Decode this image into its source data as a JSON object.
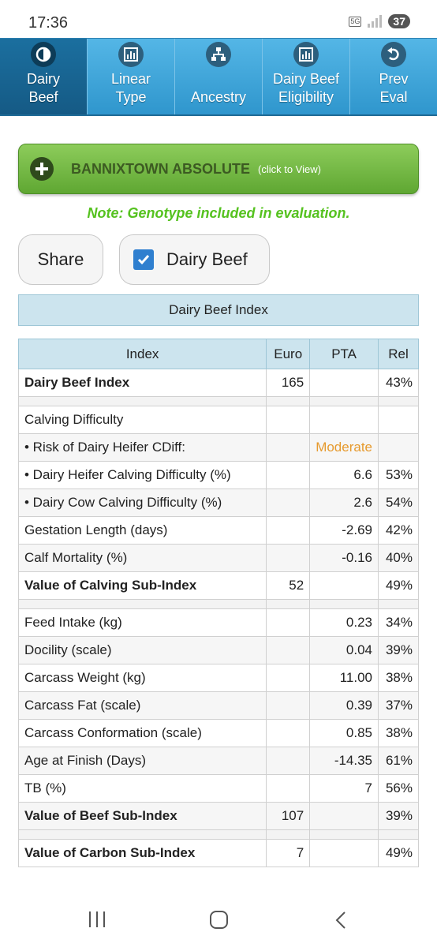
{
  "status_bar": {
    "time": "17:36",
    "network": "5G",
    "battery": "37"
  },
  "tabs": [
    {
      "label": "Dairy Beef",
      "icon": "half-circle-icon",
      "active": true
    },
    {
      "label": "Linear Type",
      "icon": "bar-chart-icon",
      "active": false
    },
    {
      "label": "Ancestry",
      "icon": "hierarchy-icon",
      "active": false
    },
    {
      "label": "Dairy Beef Eligibility",
      "icon": "bar-chart-icon",
      "active": false
    },
    {
      "label": "Prev Eval",
      "icon": "undo-icon",
      "active": false
    }
  ],
  "animal": {
    "name": "BANNIXTOWN ABSOLUTE",
    "hint": "(click to View)",
    "icon": "plus-icon"
  },
  "note": "Note: Genotype included in evaluation.",
  "buttons": {
    "share": "Share",
    "dairy_beef": "Dairy Beef",
    "dairy_beef_checked": true
  },
  "section_title": "Dairy Beef Index",
  "table": {
    "headers": [
      "Index",
      "Euro",
      "PTA",
      "Rel"
    ],
    "rows": {
      "dbi": {
        "label": "Dairy Beef Index",
        "euro": "165",
        "pta": "",
        "rel": "43%"
      },
      "calving": {
        "label": "Calving Difficulty"
      },
      "risk": {
        "label": "• Risk of Dairy Heifer CDiff:",
        "pta": "Moderate"
      },
      "heifer": {
        "label": "• Dairy Heifer Calving Difficulty (%)",
        "pta": "6.6",
        "rel": "53%"
      },
      "cow": {
        "label": "• Dairy Cow Calving Difficulty (%)",
        "pta": "2.6",
        "rel": "54%"
      },
      "gestation": {
        "label": "Gestation Length (days)",
        "pta": "-2.69",
        "rel": "42%"
      },
      "mortality": {
        "label": "Calf Mortality (%)",
        "pta": "-0.16",
        "rel": "40%"
      },
      "calving_sub": {
        "label": "Value of Calving Sub-Index",
        "euro": "52",
        "rel": "49%"
      },
      "feed": {
        "label": "Feed Intake (kg)",
        "pta": "0.23",
        "rel": "34%"
      },
      "docility": {
        "label": "Docility (scale)",
        "pta": "0.04",
        "rel": "39%"
      },
      "weight": {
        "label": "Carcass Weight (kg)",
        "pta": "11.00",
        "rel": "38%"
      },
      "fat": {
        "label": "Carcass Fat (scale)",
        "pta": "0.39",
        "rel": "37%"
      },
      "conformation": {
        "label": "Carcass Conformation (scale)",
        "pta": "0.85",
        "rel": "38%"
      },
      "finish": {
        "label": "Age at Finish (Days)",
        "pta": "-14.35",
        "rel": "61%"
      },
      "tb": {
        "label": "TB (%)",
        "pta": "7",
        "rel": "56%"
      },
      "beef_sub": {
        "label": "Value of Beef Sub-Index",
        "euro": "107",
        "rel": "39%"
      },
      "carbon_sub": {
        "label": "Value of Carbon Sub-Index",
        "euro": "7",
        "rel": "49%"
      }
    }
  },
  "colors": {
    "tab_blue": "#3a9fd4",
    "tab_active": "#155a85",
    "green_button": "#6fb43f",
    "note_green": "#55c21f",
    "moderate": "#e69a2e",
    "header_bg": "#cce4ee"
  }
}
